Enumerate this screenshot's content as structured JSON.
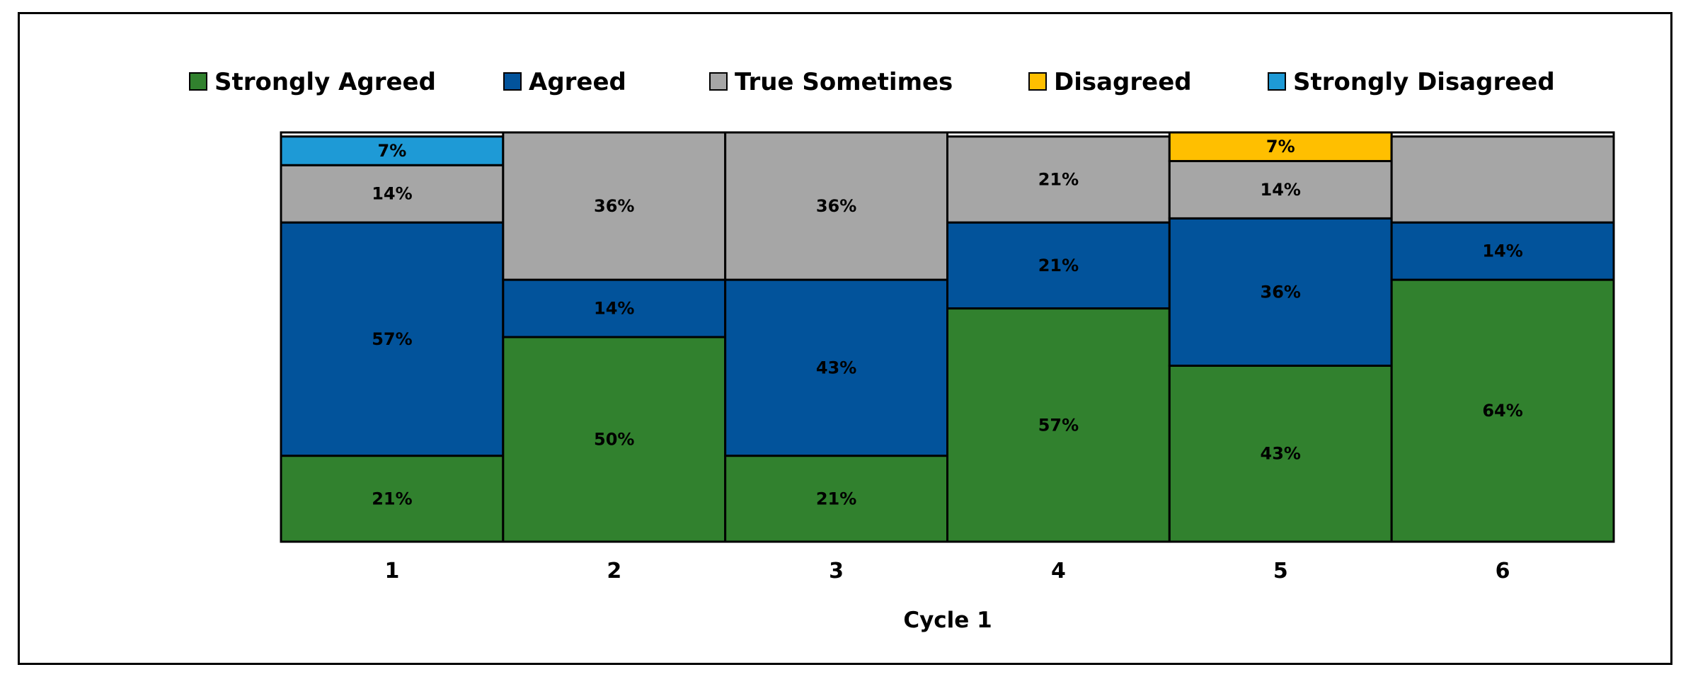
{
  "chart_data": {
    "type": "bar",
    "stacked": true,
    "title": "",
    "xlabel": "Cycle 1",
    "ylabel": "",
    "ylim": [
      0,
      100
    ],
    "grid": false,
    "legend_position": "top",
    "categories": [
      "1",
      "2",
      "3",
      "4",
      "5",
      "6"
    ],
    "series": [
      {
        "name": "Strongly Agreed",
        "color": "#31812e",
        "values": [
          21,
          50,
          21,
          57,
          43,
          64
        ],
        "labels": [
          "21%",
          "50%",
          "21%",
          "57%",
          "43%",
          "64%"
        ]
      },
      {
        "name": "Agreed",
        "color": "#02539b",
        "values": [
          57,
          14,
          43,
          21,
          36,
          14
        ],
        "labels": [
          "57%",
          "14%",
          "43%",
          "21%",
          "36%",
          "14%"
        ]
      },
      {
        "name": "True Sometimes",
        "color": "#a6a6a6",
        "values": [
          14,
          36,
          36,
          21,
          14,
          21
        ],
        "labels": [
          "14%",
          "36%",
          "36%",
          "21%",
          "14%",
          ""
        ]
      },
      {
        "name": "Disagreed",
        "color": "#ffbf00",
        "values": [
          0,
          0,
          0,
          0,
          7,
          0
        ],
        "labels": [
          "",
          "",
          "",
          "",
          "7%",
          ""
        ]
      },
      {
        "name": "Strongly Disagreed",
        "color": "#1e9ad6",
        "values": [
          7,
          0,
          0,
          0,
          0,
          0
        ],
        "labels": [
          "7%",
          "",
          "",
          "",
          "",
          ""
        ]
      }
    ]
  }
}
